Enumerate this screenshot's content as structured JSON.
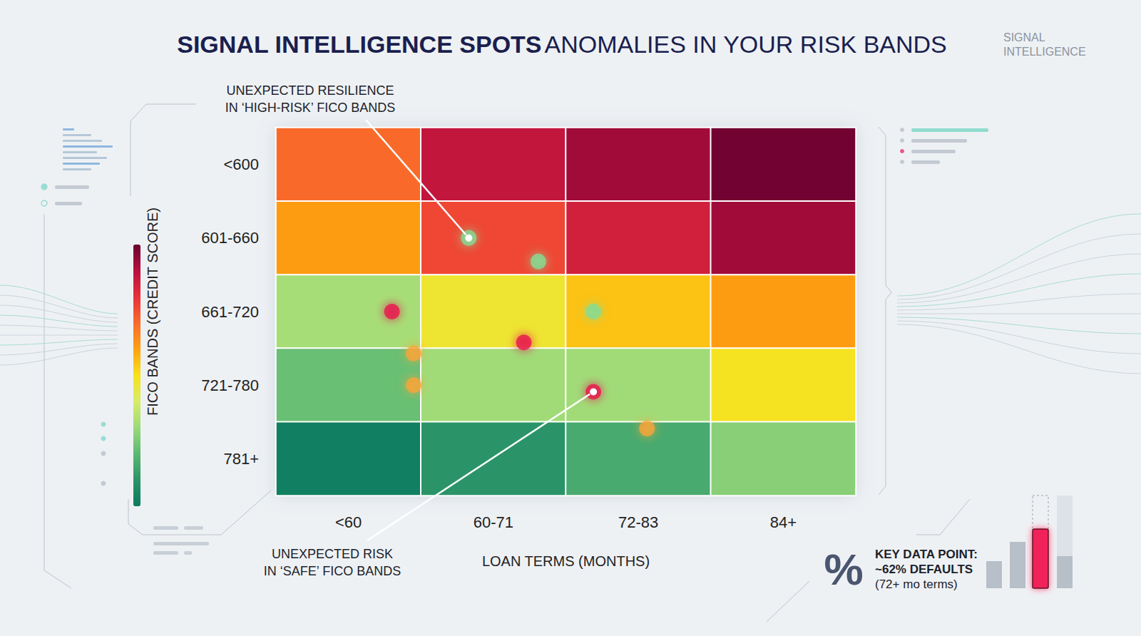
{
  "chart_data": {
    "type": "heatmap",
    "title": "SIGNAL INTELLIGENCE SPOTS",
    "subtitle": "ANOMALIES IN YOUR RISK BANDS",
    "brand": "SIGNAL INTELLIGENCE",
    "x_label": "LOAN TERMS (MONTHS)",
    "y_label": "FICO BANDS (CREDIT SCORE)",
    "categories": [
      "<60",
      "60-71",
      "72-83",
      "84+"
    ],
    "y_categories": [
      "<600",
      "601-660",
      "661-720",
      "721-780",
      "781+"
    ],
    "values": [
      [
        70,
        88,
        93,
        99
      ],
      [
        61,
        76,
        85,
        93
      ],
      [
        32,
        47,
        55,
        61
      ],
      [
        22,
        31,
        31,
        49
      ],
      [
        2,
        10,
        16,
        27
      ]
    ],
    "colorbar": {
      "range": [
        0,
        100
      ],
      "colors": [
        "#0b7a5f",
        "#2a9468",
        "#5cb872",
        "#9bd97a",
        "#d8ec6a",
        "#f8e21a",
        "#ffa10e",
        "#f96a2a",
        "#e8303a",
        "#b8103e",
        "#6a0030"
      ]
    },
    "anomalies": {
      "x": [
        1.33,
        1.81,
        2.19,
        0.8,
        1.71,
        2.19,
        0.95,
        0.95,
        2.56
      ],
      "y": [
        1.5,
        1.82,
        2.5,
        2.5,
        2.92,
        3.59,
        3.07,
        3.5,
        4.09
      ],
      "colors": [
        "#86dc94",
        "#86dc94",
        "#86dc94",
        "#e8174f",
        "#e8174f",
        "#e8174f",
        "#f7a53a",
        "#f7a53a",
        "#f7a53a"
      ]
    },
    "annotations": [
      {
        "lines": [
          "UNEXPECTED RESILIENCE",
          "IN ‘HIGH-RISK’ FICO BANDS"
        ],
        "x": 1.33,
        "y": 1.5
      },
      {
        "lines": [
          "UNEXPECTED RISK",
          "IN ‘SAFE’ FICO BANDS"
        ],
        "x": 2.19,
        "y": 3.59
      }
    ],
    "key_data_point": {
      "icon": "%",
      "label": "KEY DATA POINT:",
      "text": "~62% DEFAULTS",
      "note": "(72+ mo terms)"
    }
  }
}
